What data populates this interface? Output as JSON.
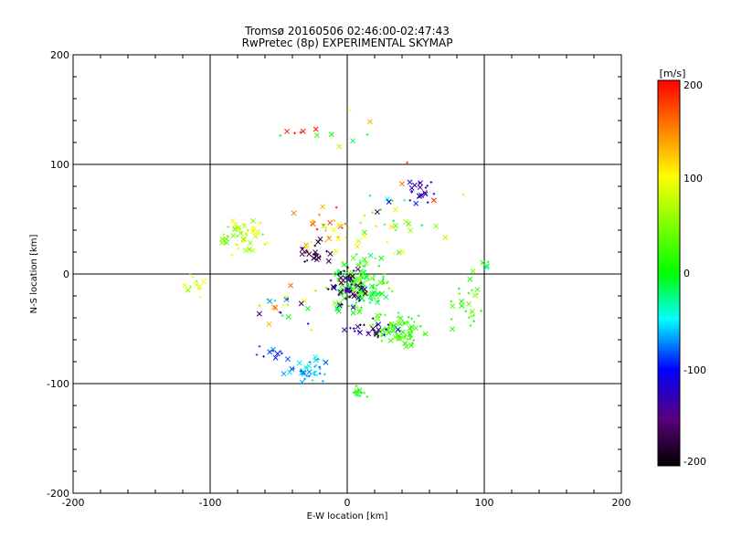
{
  "chart_data": {
    "type": "scatter",
    "title_line1": "Tromsø 20160506 02:46:00-02:47:43",
    "title_line2": "RwPretec (8p) EXPERIMENTAL SKYMAP",
    "xlabel": "E-W location [km]",
    "ylabel": "N-S location [km]",
    "xlim": [
      -200,
      200
    ],
    "ylim": [
      -200,
      200
    ],
    "xticks": [
      "-200",
      "-100",
      "0",
      "100",
      "200"
    ],
    "yticks": [
      "-200",
      "-100",
      "0",
      "100",
      "200"
    ],
    "grid": [
      -100,
      0,
      100
    ],
    "colorbar": {
      "label": "[m/s]",
      "range": [
        -200,
        200
      ],
      "ticks": [
        "200",
        "100",
        "0",
        "-100",
        "-200"
      ],
      "colors": [
        "#000000",
        "#5a007a",
        "#0000ff",
        "#00ffff",
        "#00ff00",
        "#ffff00",
        "#ff0000"
      ]
    },
    "markers": {
      "cross": "x",
      "dot": "+"
    },
    "clusters": [
      {
        "cx": 55,
        "cy": 75,
        "sx": 8,
        "sy": 8,
        "n": 20,
        "vmin": -150,
        "vmax": -90
      },
      {
        "cx": -78,
        "cy": 35,
        "sx": 14,
        "sy": 13,
        "n": 50,
        "vmin": 30,
        "vmax": 110
      },
      {
        "cx": -112,
        "cy": -8,
        "sx": 8,
        "sy": 8,
        "n": 12,
        "vmin": 50,
        "vmax": 110
      },
      {
        "cx": 10,
        "cy": -10,
        "sx": 16,
        "sy": 18,
        "n": 160,
        "vmin": -40,
        "vmax": 60
      },
      {
        "cx": 0,
        "cy": -12,
        "sx": 9,
        "sy": 12,
        "n": 55,
        "vmin": -200,
        "vmax": -120
      },
      {
        "cx": 38,
        "cy": -52,
        "sx": 14,
        "sy": 10,
        "n": 80,
        "vmin": -10,
        "vmax": 50
      },
      {
        "cx": 18,
        "cy": -50,
        "sx": 14,
        "sy": 6,
        "n": 25,
        "vmin": -200,
        "vmax": -100
      },
      {
        "cx": -28,
        "cy": -88,
        "sx": 12,
        "sy": 7,
        "n": 40,
        "vmin": -90,
        "vmax": -40
      },
      {
        "cx": -55,
        "cy": -72,
        "sx": 7,
        "sy": 5,
        "n": 10,
        "vmin": -110,
        "vmax": -70
      },
      {
        "cx": 8,
        "cy": -108,
        "sx": 5,
        "sy": 4,
        "n": 12,
        "vmin": -20,
        "vmax": 20
      },
      {
        "cx": -15,
        "cy": 40,
        "sx": 16,
        "sy": 14,
        "n": 30,
        "vmin": 60,
        "vmax": 200
      },
      {
        "cx": -25,
        "cy": 18,
        "sx": 10,
        "sy": 10,
        "n": 25,
        "vmin": -200,
        "vmax": -140
      },
      {
        "cx": 30,
        "cy": 40,
        "sx": 18,
        "sy": 15,
        "n": 20,
        "vmin": -20,
        "vmax": 120
      },
      {
        "cx": 90,
        "cy": -30,
        "sx": 12,
        "sy": 22,
        "n": 25,
        "vmin": -10,
        "vmax": 60
      },
      {
        "cx": -10,
        "cy": 130,
        "sx": 30,
        "sy": 12,
        "n": 10,
        "vmin": -30,
        "vmax": 200
      },
      {
        "cx": -45,
        "cy": -30,
        "sx": 18,
        "sy": 15,
        "n": 25,
        "vmin": -200,
        "vmax": 200
      },
      {
        "cx": -35,
        "cy": 132,
        "sx": 3,
        "sy": 6,
        "n": 3,
        "vmin": 180,
        "vmax": 200
      },
      {
        "cx": 50,
        "cy": 70,
        "sx": 35,
        "sy": 30,
        "n": 15,
        "vmin": -200,
        "vmax": 200
      },
      {
        "cx": 100,
        "cy": 10,
        "sx": 4,
        "sy": 4,
        "n": 4,
        "vmin": -60,
        "vmax": 20
      }
    ]
  }
}
